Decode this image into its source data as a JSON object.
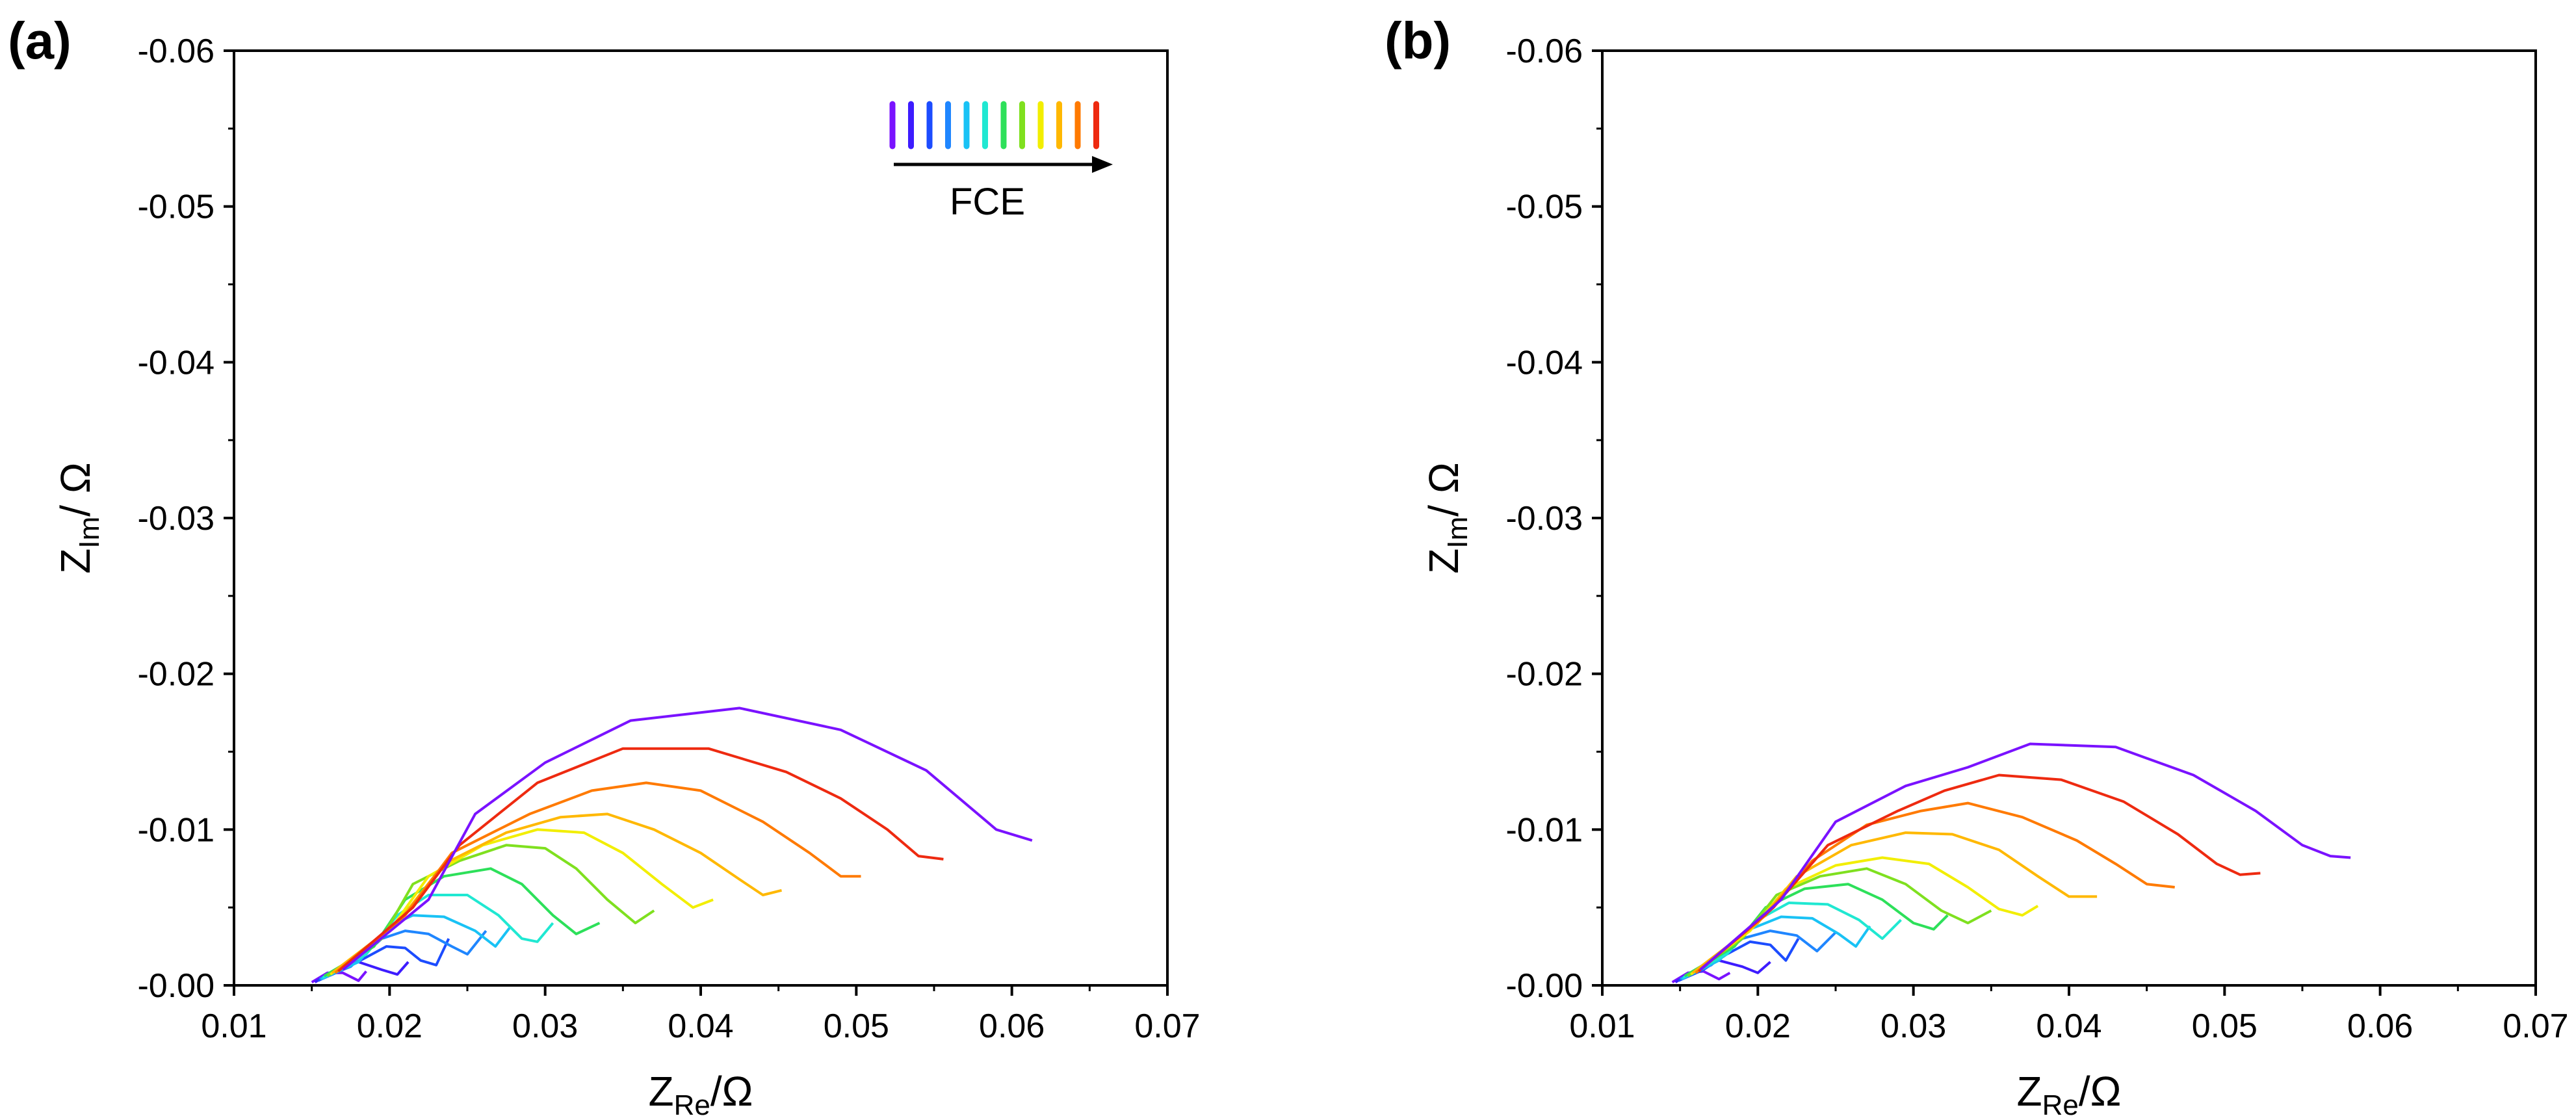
{
  "colors": {
    "spectrum": [
      "#7a12ff",
      "#3d1cff",
      "#1c4cff",
      "#1f86ff",
      "#19c2f5",
      "#20e8d2",
      "#2de05a",
      "#7fe01f",
      "#f2ee00",
      "#ffb800",
      "#ff7a00",
      "#ee2a10"
    ],
    "axis": "#000000"
  },
  "legend": {
    "label": "FCE"
  },
  "chart_data": [
    {
      "type": "line",
      "panel_label": "(a)",
      "xlabel": {
        "main": "Z",
        "sub": "Re",
        "unit": "/Ω"
      },
      "ylabel": {
        "main": "Z",
        "sub": "Im",
        "unit": "/ Ω"
      },
      "xlim": [
        0.01,
        0.07
      ],
      "ylim": [
        0,
        -0.06
      ],
      "xticks": [
        0.01,
        0.02,
        0.03,
        0.04,
        0.05,
        0.06,
        0.07
      ],
      "yticks": [
        0.0,
        -0.01,
        -0.02,
        -0.03,
        -0.04,
        -0.05,
        -0.06
      ],
      "xtick_labels": [
        "0.01",
        "0.02",
        "0.03",
        "0.04",
        "0.05",
        "0.06",
        "0.07"
      ],
      "ytick_labels": [
        "-0.00",
        "-0.01",
        "-0.02",
        "-0.03",
        "-0.04",
        "-0.05",
        "-0.06"
      ],
      "legend": "top-right",
      "series": [
        {
          "x": [
            0.015,
            0.016,
            0.017,
            0.018,
            0.0185
          ],
          "y": [
            -0.0002,
            -0.0008,
            -0.0008,
            -0.0003,
            -0.0009
          ]
        },
        {
          "x": [
            0.0152,
            0.0165,
            0.018,
            0.0195,
            0.0205,
            0.0212
          ],
          "y": [
            -0.0002,
            -0.001,
            -0.0015,
            -0.001,
            -0.0007,
            -0.0015
          ]
        },
        {
          "x": [
            0.0154,
            0.017,
            0.0185,
            0.0198,
            0.021,
            0.022,
            0.023,
            0.0238
          ],
          "y": [
            -0.0003,
            -0.001,
            -0.0018,
            -0.0025,
            -0.0024,
            -0.0016,
            -0.0013,
            -0.003
          ]
        },
        {
          "x": [
            0.0155,
            0.0175,
            0.0195,
            0.021,
            0.0225,
            0.024,
            0.025,
            0.0262
          ],
          "y": [
            -0.0004,
            -0.0012,
            -0.003,
            -0.0035,
            -0.0033,
            -0.0025,
            -0.002,
            -0.0035
          ]
        },
        {
          "x": [
            0.0156,
            0.018,
            0.02,
            0.0215,
            0.0235,
            0.0255,
            0.0268,
            0.0278
          ],
          "y": [
            -0.0004,
            -0.0015,
            -0.0038,
            -0.0045,
            -0.0044,
            -0.0035,
            -0.0025,
            -0.0038
          ]
        },
        {
          "x": [
            0.0157,
            0.0185,
            0.0205,
            0.0225,
            0.025,
            0.027,
            0.0285,
            0.0295,
            0.0305
          ],
          "y": [
            -0.0005,
            -0.002,
            -0.0045,
            -0.0058,
            -0.0058,
            -0.0045,
            -0.003,
            -0.0028,
            -0.004
          ]
        },
        {
          "x": [
            0.0158,
            0.019,
            0.021,
            0.0235,
            0.0265,
            0.0285,
            0.0305,
            0.032,
            0.0335
          ],
          "y": [
            -0.0006,
            -0.0025,
            -0.0055,
            -0.007,
            -0.0075,
            -0.0065,
            -0.0045,
            -0.0033,
            -0.004
          ]
        },
        {
          "x": [
            0.016,
            0.0195,
            0.0215,
            0.0245,
            0.0275,
            0.03,
            0.032,
            0.034,
            0.0358,
            0.037
          ],
          "y": [
            -0.0006,
            -0.003,
            -0.0065,
            -0.008,
            -0.009,
            -0.0088,
            -0.0075,
            -0.0055,
            -0.004,
            -0.0048
          ]
        },
        {
          "x": [
            0.0162,
            0.02,
            0.0225,
            0.026,
            0.0295,
            0.0325,
            0.035,
            0.0375,
            0.0395,
            0.0408
          ],
          "y": [
            -0.0007,
            -0.0035,
            -0.007,
            -0.009,
            -0.01,
            -0.0098,
            -0.0085,
            -0.0065,
            -0.005,
            -0.0055
          ]
        },
        {
          "x": [
            0.0163,
            0.0205,
            0.0235,
            0.0275,
            0.031,
            0.034,
            0.037,
            0.04,
            0.0425,
            0.044,
            0.0452
          ],
          "y": [
            -0.0008,
            -0.004,
            -0.0078,
            -0.0098,
            -0.0108,
            -0.011,
            -0.01,
            -0.0085,
            -0.0068,
            -0.0058,
            -0.0061
          ]
        },
        {
          "x": [
            0.0165,
            0.021,
            0.024,
            0.029,
            0.033,
            0.0365,
            0.04,
            0.044,
            0.047,
            0.049,
            0.0503
          ],
          "y": [
            -0.0008,
            -0.0045,
            -0.0085,
            -0.011,
            -0.0125,
            -0.013,
            -0.0125,
            -0.0105,
            -0.0085,
            -0.007,
            -0.007
          ]
        },
        {
          "x": [
            0.0167,
            0.0215,
            0.0245,
            0.0295,
            0.035,
            0.0405,
            0.0455,
            0.049,
            0.052,
            0.054,
            0.0556
          ],
          "y": [
            -0.0009,
            -0.005,
            -0.009,
            -0.013,
            -0.0152,
            -0.0152,
            -0.0137,
            -0.012,
            -0.01,
            -0.0083,
            -0.0081
          ]
        },
        {
          "x": [
            0.017,
            0.0225,
            0.0255,
            0.03,
            0.0355,
            0.0425,
            0.049,
            0.0545,
            0.059,
            0.0613
          ],
          "y": [
            -0.001,
            -0.0055,
            -0.011,
            -0.0143,
            -0.017,
            -0.0178,
            -0.0164,
            -0.0138,
            -0.01,
            -0.0093
          ]
        }
      ]
    },
    {
      "type": "line",
      "panel_label": "(b)",
      "xlabel": {
        "main": "Z",
        "sub": "Re",
        "unit": "/Ω"
      },
      "ylabel": {
        "main": "Z",
        "sub": "Im",
        "unit": "/ Ω"
      },
      "xlim": [
        0.01,
        0.07
      ],
      "ylim": [
        0,
        -0.06
      ],
      "xticks": [
        0.01,
        0.02,
        0.03,
        0.04,
        0.05,
        0.06,
        0.07
      ],
      "yticks": [
        0.0,
        -0.01,
        -0.02,
        -0.03,
        -0.04,
        -0.05,
        -0.06
      ],
      "xtick_labels": [
        "0.01",
        "0.02",
        "0.03",
        "0.04",
        "0.05",
        "0.06",
        "0.07"
      ],
      "ytick_labels": [
        "-0.00",
        "-0.01",
        "-0.02",
        "-0.03",
        "-0.04",
        "-0.05",
        "-0.06"
      ],
      "legend": "none",
      "series": [
        {
          "x": [
            0.0145,
            0.0155,
            0.0165,
            0.0175,
            0.0182
          ],
          "y": [
            -0.0002,
            -0.0008,
            -0.0009,
            -0.0004,
            -0.0008
          ]
        },
        {
          "x": [
            0.0147,
            0.016,
            0.0175,
            0.019,
            0.02,
            0.0208
          ],
          "y": [
            -0.0002,
            -0.001,
            -0.0016,
            -0.0012,
            -0.0008,
            -0.0015
          ]
        },
        {
          "x": [
            0.0149,
            0.0165,
            0.018,
            0.0195,
            0.0208,
            0.0218,
            0.0226
          ],
          "y": [
            -0.0003,
            -0.001,
            -0.002,
            -0.0028,
            -0.0026,
            -0.0016,
            -0.003
          ]
        },
        {
          "x": [
            0.015,
            0.017,
            0.019,
            0.0208,
            0.0225,
            0.0238,
            0.025
          ],
          "y": [
            -0.0004,
            -0.0013,
            -0.003,
            -0.0035,
            -0.0032,
            -0.0022,
            -0.0034
          ]
        },
        {
          "x": [
            0.0151,
            0.0175,
            0.0195,
            0.0215,
            0.0235,
            0.0252,
            0.0263,
            0.0272
          ],
          "y": [
            -0.0004,
            -0.0016,
            -0.0036,
            -0.0044,
            -0.0043,
            -0.0033,
            -0.0025,
            -0.0038
          ]
        },
        {
          "x": [
            0.0152,
            0.018,
            0.02,
            0.022,
            0.0245,
            0.0265,
            0.028,
            0.0292
          ],
          "y": [
            -0.0005,
            -0.002,
            -0.0042,
            -0.0053,
            -0.0052,
            -0.0042,
            -0.003,
            -0.0042
          ]
        },
        {
          "x": [
            0.0153,
            0.0185,
            0.0205,
            0.023,
            0.0258,
            0.028,
            0.03,
            0.0313,
            0.0322
          ],
          "y": [
            -0.0006,
            -0.0025,
            -0.005,
            -0.0062,
            -0.0065,
            -0.0055,
            -0.004,
            -0.0036,
            -0.0045
          ]
        },
        {
          "x": [
            0.0155,
            0.019,
            0.0212,
            0.024,
            0.027,
            0.0295,
            0.0318,
            0.0335,
            0.035
          ],
          "y": [
            -0.0006,
            -0.003,
            -0.0058,
            -0.007,
            -0.0075,
            -0.0065,
            -0.0048,
            -0.004,
            -0.0048
          ]
        },
        {
          "x": [
            0.0157,
            0.0195,
            0.0218,
            0.025,
            0.028,
            0.031,
            0.0335,
            0.0355,
            0.037,
            0.038
          ],
          "y": [
            -0.0007,
            -0.0035,
            -0.0062,
            -0.0077,
            -0.0082,
            -0.0078,
            -0.0063,
            -0.0049,
            -0.0045,
            -0.0051
          ]
        },
        {
          "x": [
            0.0158,
            0.02,
            0.0225,
            0.026,
            0.0295,
            0.0325,
            0.0355,
            0.038,
            0.04,
            0.0418
          ],
          "y": [
            -0.0008,
            -0.004,
            -0.007,
            -0.009,
            -0.0098,
            -0.0097,
            -0.0087,
            -0.007,
            -0.0057,
            -0.0057
          ]
        },
        {
          "x": [
            0.016,
            0.0205,
            0.0235,
            0.027,
            0.0305,
            0.0335,
            0.037,
            0.0405,
            0.043,
            0.045,
            0.0468
          ],
          "y": [
            -0.0008,
            -0.0045,
            -0.008,
            -0.0103,
            -0.0112,
            -0.0117,
            -0.0108,
            -0.0093,
            -0.0078,
            -0.0065,
            -0.0063
          ]
        },
        {
          "x": [
            0.0162,
            0.021,
            0.0245,
            0.029,
            0.032,
            0.0355,
            0.0395,
            0.0435,
            0.047,
            0.0495,
            0.051,
            0.0523
          ],
          "y": [
            -0.0009,
            -0.005,
            -0.009,
            -0.0112,
            -0.0125,
            -0.0135,
            -0.0132,
            -0.0118,
            -0.0097,
            -0.0078,
            -0.0071,
            -0.0072
          ]
        },
        {
          "x": [
            0.0163,
            0.0215,
            0.025,
            0.0295,
            0.0335,
            0.0375,
            0.043,
            0.048,
            0.052,
            0.055,
            0.0568,
            0.0581
          ],
          "y": [
            -0.001,
            -0.0055,
            -0.0105,
            -0.0128,
            -0.014,
            -0.0155,
            -0.0153,
            -0.0135,
            -0.0112,
            -0.009,
            -0.0083,
            -0.0082
          ]
        }
      ]
    }
  ]
}
